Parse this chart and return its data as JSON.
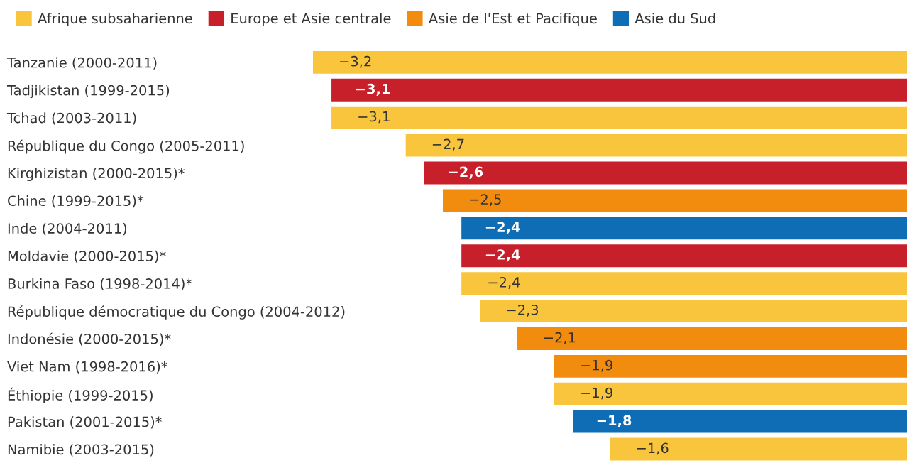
{
  "chart_data": {
    "type": "bar",
    "orientation": "horizontal",
    "legend": "top left",
    "tick_labels": "y",
    "categories": [
      "Tanzanie (2000-2011)",
      "Tadjikistan (1999-2015)",
      "Tchad (2003-2011)",
      "République du Congo (2005-2011)",
      "Kirghizistan (2000-2015)*",
      "Chine (1999-2015)*",
      "Inde (2004-2011)",
      "Moldavie (2000-2015)*",
      "Burkina Faso (1998-2014)*",
      "République démocratique du Congo (2004-2012)",
      "Indonésie (2000-2015)*",
      "Viet Nam (1998-2016)*",
      "Éthiopie (1999-2015)",
      "Pakistan (2001-2015)*",
      "Namibie (2003-2015)"
    ],
    "series": [
      {
        "name": "Afrique subsaharienne",
        "color": "#f9c53d",
        "values": [
          -3.2,
          null,
          -3.1,
          -2.7,
          null,
          null,
          null,
          null,
          -2.4,
          -2.3,
          null,
          null,
          -1.9,
          null,
          -1.6
        ],
        "value_labels": [
          "−3,2",
          null,
          "−3,1",
          "−2,7",
          null,
          null,
          null,
          null,
          "−2,4",
          "−2,3",
          null,
          null,
          "−1,9",
          null,
          "−1,6"
        ]
      },
      {
        "name": "Europe et Asie centrale",
        "color": "#c8202b",
        "values": [
          null,
          -3.1,
          null,
          null,
          -2.6,
          null,
          null,
          -2.4,
          null,
          null,
          null,
          null,
          null,
          null,
          null
        ],
        "value_labels": [
          null,
          "−3,1",
          null,
          null,
          "−2,6",
          null,
          null,
          "−2,4",
          null,
          null,
          null,
          null,
          null,
          null,
          null
        ]
      },
      {
        "name": "Asie de l'Est et Pacifique",
        "color": "#f28c0f",
        "values": [
          null,
          null,
          null,
          null,
          null,
          -2.5,
          null,
          null,
          null,
          null,
          -2.1,
          -1.9,
          null,
          null,
          null
        ],
        "value_labels": [
          null,
          null,
          null,
          null,
          null,
          "−2,5",
          null,
          null,
          null,
          null,
          "−2,1",
          "−1,9",
          null,
          null,
          null
        ]
      },
      {
        "name": "Asie du Sud",
        "color": "#0f6db5",
        "values": [
          null,
          null,
          null,
          null,
          null,
          null,
          -2.4,
          null,
          null,
          null,
          null,
          null,
          null,
          -1.8,
          null
        ],
        "value_labels": [
          null,
          null,
          null,
          null,
          null,
          null,
          "−2,4",
          null,
          null,
          null,
          null,
          null,
          null,
          "−1,8",
          null
        ]
      }
    ]
  }
}
